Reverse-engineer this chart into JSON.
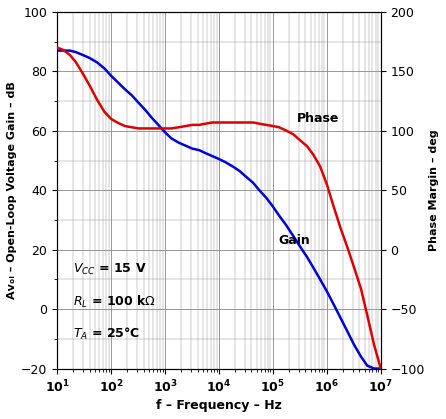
{
  "xlabel": "f – Frequency – Hz",
  "ylabel_left": "Aᴠₒₗ – Open-Loop Voltage Gain – dB",
  "ylabel_right": "Phase Margin – deg",
  "ylim_left": [
    -20,
    100
  ],
  "ylim_right": [
    -100,
    200
  ],
  "xlim": [
    10,
    10000000.0
  ],
  "gain_color": "#0000dd",
  "phase_color": "#dd0000",
  "gain_label": "Gain",
  "phase_label": "Phase",
  "annotation_vcc": "V",
  "annotation_rl": "R",
  "annotation_ta": "T",
  "gain_freq": [
    10,
    13,
    17,
    22,
    30,
    40,
    55,
    75,
    100,
    130,
    180,
    240,
    320,
    430,
    560,
    750,
    1000,
    1300,
    1800,
    2400,
    3200,
    4300,
    5600,
    7500,
    10000,
    13000,
    18000,
    24000,
    32000,
    43000,
    56000,
    75000,
    100000,
    130000,
    180000,
    240000,
    320000,
    430000,
    560000,
    750000,
    1000000,
    1300000,
    1800000,
    2400000,
    3200000,
    4300000,
    5600000,
    7500000,
    10000000
  ],
  "gain_vals": [
    87,
    87,
    87,
    86.5,
    85.5,
    84.5,
    83,
    81,
    78.5,
    76.5,
    74,
    72,
    69.5,
    67,
    64.5,
    62,
    59.5,
    57.5,
    56,
    55,
    54,
    53.5,
    52.5,
    51.5,
    50.5,
    49.5,
    48,
    46.5,
    44.5,
    42.5,
    40,
    37.5,
    34.5,
    31.5,
    28,
    24.5,
    21,
    17.5,
    14,
    10,
    6,
    2,
    -3,
    -7.5,
    -12,
    -16,
    -19,
    -20,
    -20
  ],
  "phase_freq": [
    10,
    13,
    17,
    22,
    30,
    40,
    55,
    75,
    100,
    130,
    180,
    240,
    320,
    430,
    560,
    750,
    1000,
    1300,
    1800,
    2400,
    3200,
    4300,
    5600,
    7500,
    10000,
    13000,
    18000,
    24000,
    32000,
    43000,
    56000,
    75000,
    100000,
    130000,
    180000,
    240000,
    320000,
    430000,
    560000,
    750000,
    1000000,
    1300000,
    1800000,
    2400000,
    3200000,
    4300000,
    5600000,
    7500000,
    10000000
  ],
  "phase_vals": [
    170,
    168,
    164,
    158,
    148,
    138,
    126,
    116,
    110,
    107,
    104,
    103,
    102,
    102,
    102,
    102,
    102,
    102,
    103,
    104,
    105,
    105,
    106,
    107,
    107,
    107,
    107,
    107,
    107,
    107,
    106,
    105,
    104,
    103,
    100,
    97,
    92,
    87,
    80,
    70,
    55,
    38,
    18,
    2,
    -15,
    -33,
    -55,
    -80,
    -100
  ]
}
